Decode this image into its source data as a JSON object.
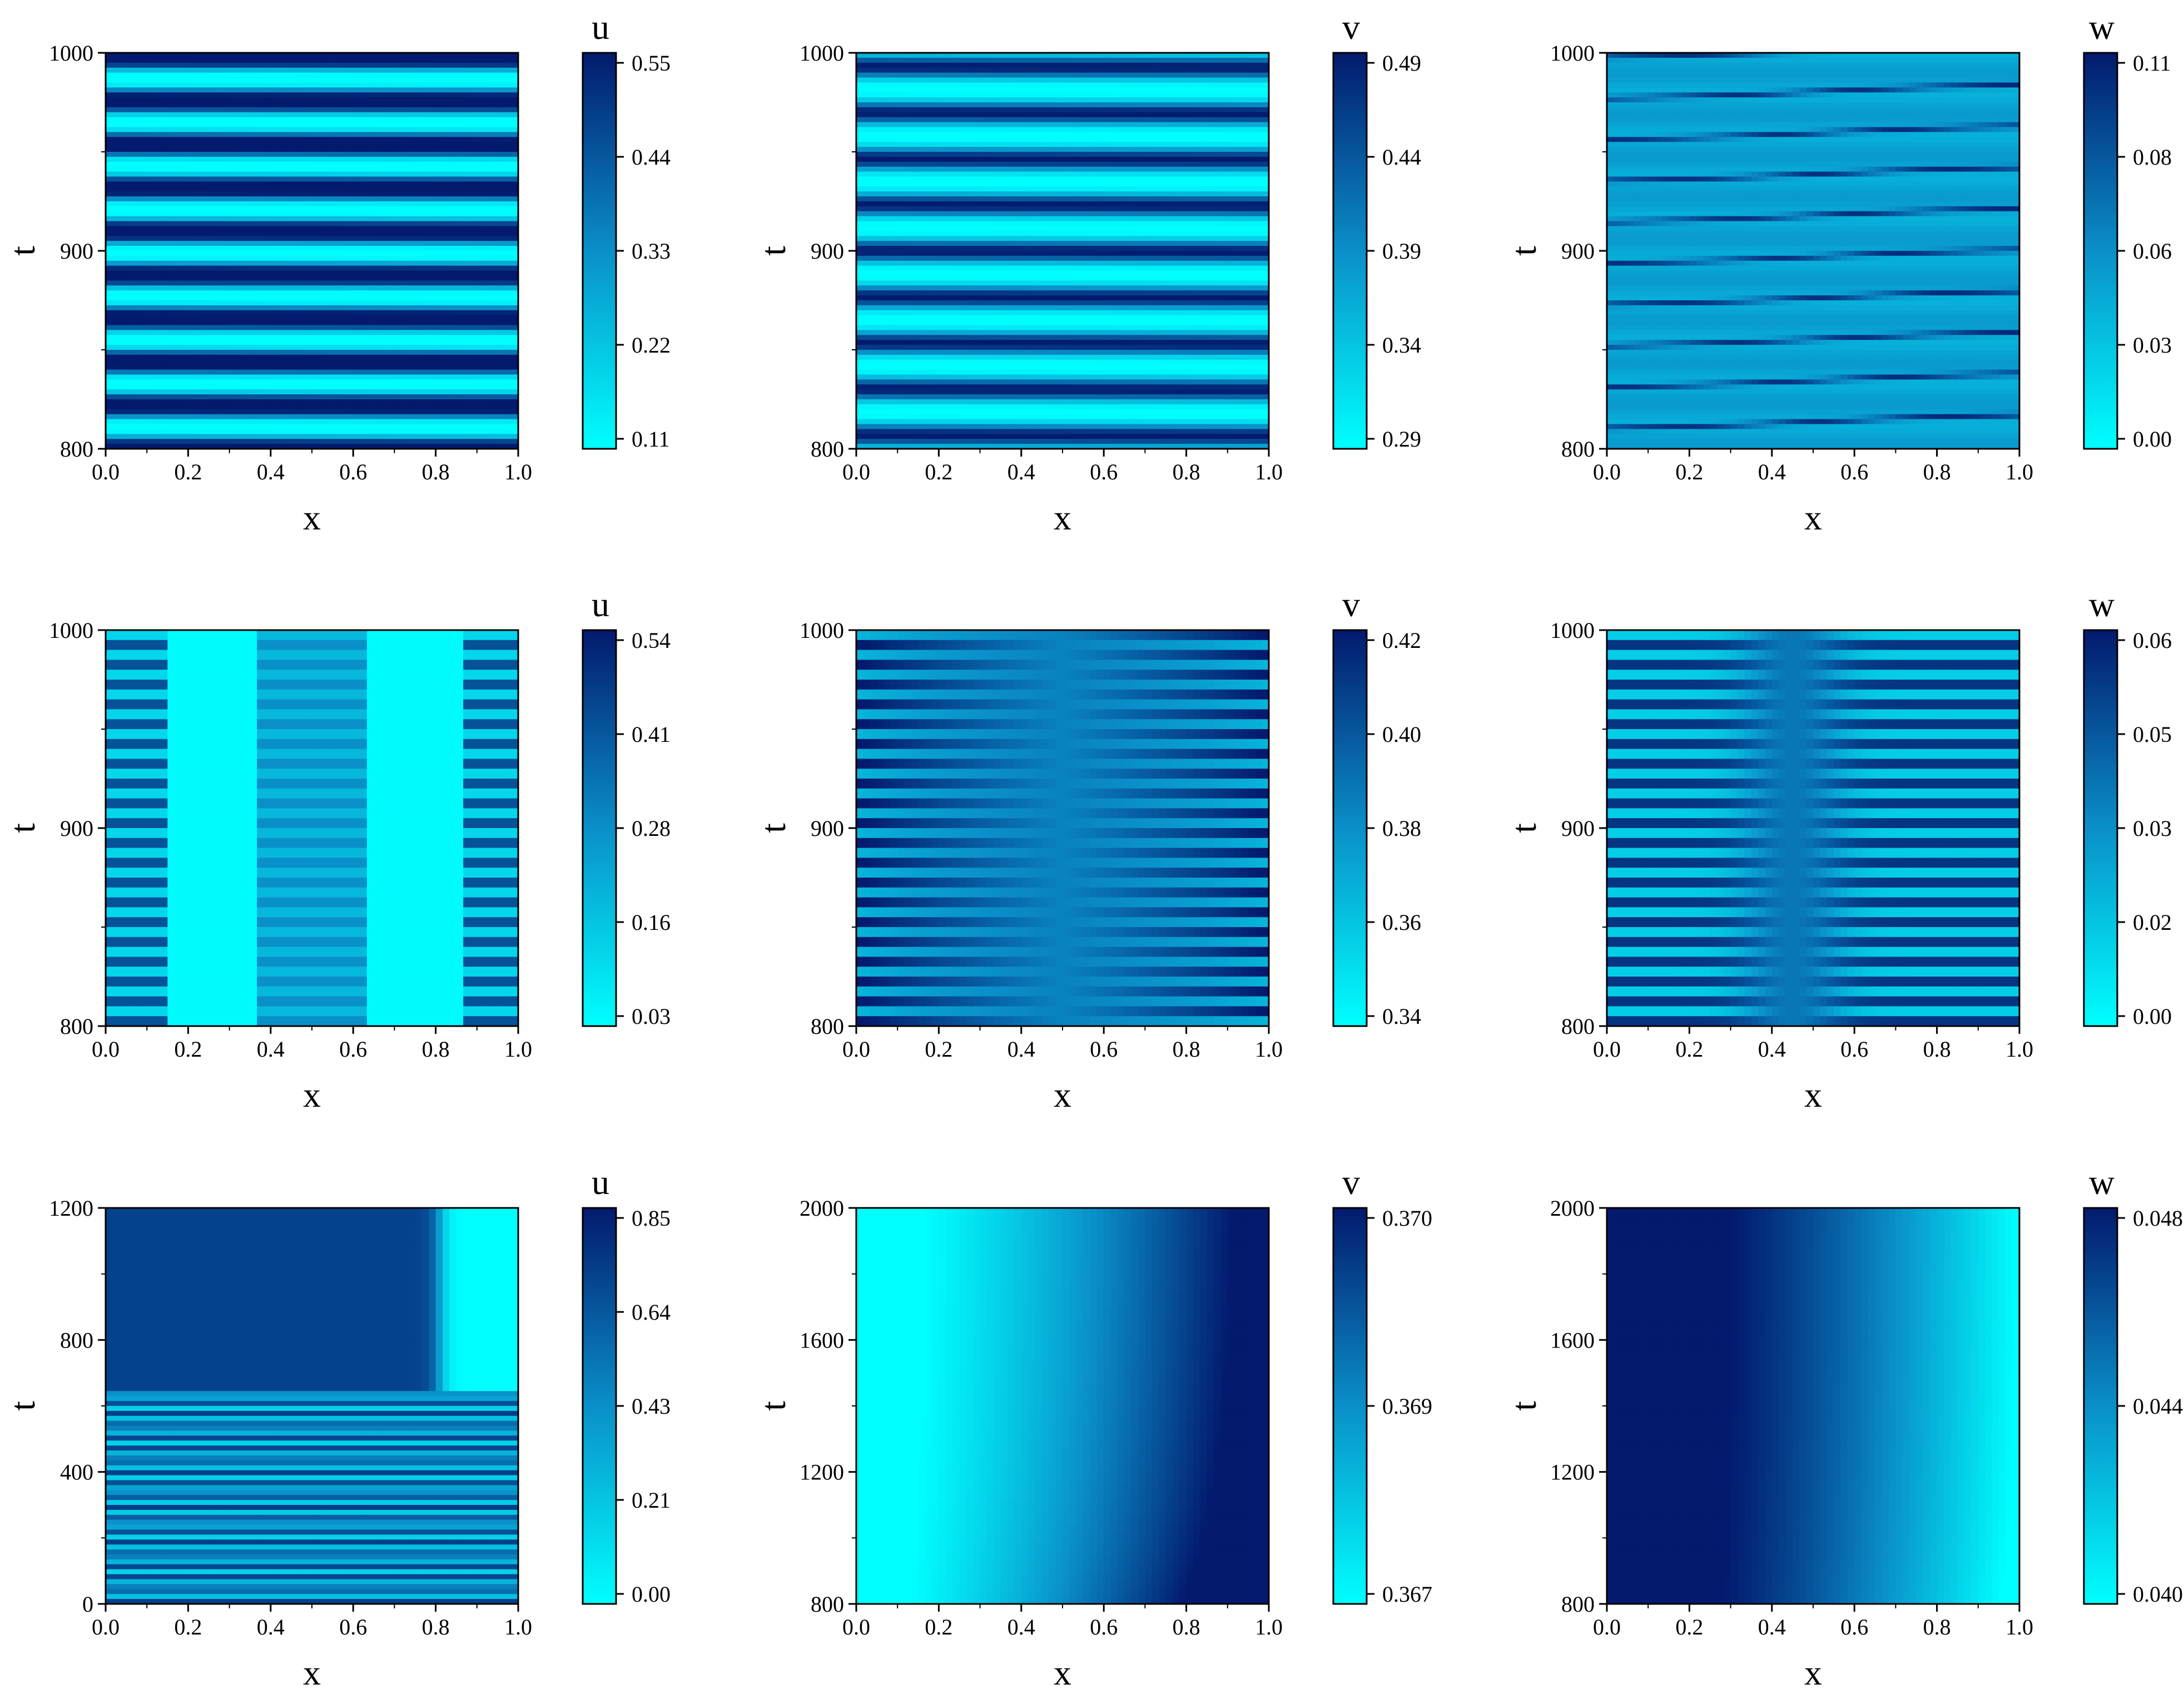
{
  "colors": {
    "low": "#00ffff",
    "mid": "#0a8fc8",
    "high": "#031a6e",
    "frame": "#000000"
  },
  "chart_data": [
    {
      "type": "heatmap",
      "title": "",
      "xlabel": "x",
      "ylabel": "t",
      "colorbar_label": "u",
      "xlim": [
        0.0,
        1.0
      ],
      "ylim": [
        800,
        1000
      ],
      "x_ticks": [
        "0.0",
        "0.2",
        "0.4",
        "0.6",
        "0.8",
        "1.0"
      ],
      "y_ticks": [
        "800",
        "900",
        "1000"
      ],
      "colorbar_ticks": [
        "0.55",
        "0.44",
        "0.33",
        "0.22",
        "0.11"
      ],
      "color_range": [
        0.11,
        0.55
      ],
      "pattern": "horizontal stripes, uniform in x, about 9 periods in t",
      "z_description": "u(x,t) periodic in time"
    },
    {
      "type": "heatmap",
      "title": "",
      "xlabel": "x",
      "ylabel": "t",
      "colorbar_label": "v",
      "xlim": [
        0.0,
        1.0
      ],
      "ylim": [
        800,
        1000
      ],
      "x_ticks": [
        "0.0",
        "0.2",
        "0.4",
        "0.6",
        "0.8",
        "1.0"
      ],
      "y_ticks": [
        "800",
        "900",
        "1000"
      ],
      "colorbar_ticks": [
        "0.49",
        "0.44",
        "0.39",
        "0.34",
        "0.29"
      ],
      "color_range": [
        0.29,
        0.49
      ],
      "pattern": "horizontal stripes, uniform in x, about 9 periods in t",
      "z_description": "v(x,t) periodic in time"
    },
    {
      "type": "heatmap",
      "title": "",
      "xlabel": "x",
      "ylabel": "t",
      "colorbar_label": "w",
      "xlim": [
        0.0,
        1.0
      ],
      "ylim": [
        800,
        1000
      ],
      "x_ticks": [
        "0.0",
        "0.2",
        "0.4",
        "0.6",
        "0.8",
        "1.0"
      ],
      "y_ticks": [
        "800",
        "900",
        "1000"
      ],
      "colorbar_ticks": [
        "0.11",
        "0.08",
        "0.06",
        "0.03",
        "0.00"
      ],
      "color_range": [
        0.0,
        0.11
      ],
      "pattern": "slanted thin dark bands on light background",
      "z_description": "w(x,t) spikes travelling in x"
    },
    {
      "type": "heatmap",
      "title": "",
      "xlabel": "x",
      "ylabel": "t",
      "colorbar_label": "u",
      "xlim": [
        0.0,
        1.0
      ],
      "ylim": [
        800,
        1000
      ],
      "x_ticks": [
        "0.0",
        "0.2",
        "0.4",
        "0.6",
        "0.8",
        "1.0"
      ],
      "y_ticks": [
        "800",
        "900",
        "1000"
      ],
      "colorbar_ticks": [
        "0.54",
        "0.41",
        "0.28",
        "0.16",
        "0.03"
      ],
      "color_range": [
        0.03,
        0.54
      ],
      "pattern": "oscillating columns near x=0, x=0.5, x=1; light elsewhere",
      "z_description": "u(x,t) spatially localized oscillations"
    },
    {
      "type": "heatmap",
      "title": "",
      "xlabel": "x",
      "ylabel": "t",
      "colorbar_label": "v",
      "xlim": [
        0.0,
        1.0
      ],
      "ylim": [
        800,
        1000
      ],
      "x_ticks": [
        "0.0",
        "0.2",
        "0.4",
        "0.6",
        "0.8",
        "1.0"
      ],
      "y_ticks": [
        "800",
        "900",
        "1000"
      ],
      "colorbar_ticks": [
        "0.42",
        "0.40",
        "0.38",
        "0.36",
        "0.34"
      ],
      "color_range": [
        0.34,
        0.42
      ],
      "pattern": "dense horizontal stripes, about 20 periods in t, anti-phase at x=0 and x=1",
      "z_description": "v(x,t) fast oscillation"
    },
    {
      "type": "heatmap",
      "title": "",
      "xlabel": "x",
      "ylabel": "t",
      "colorbar_label": "w",
      "xlim": [
        0.0,
        1.0
      ],
      "ylim": [
        800,
        1000
      ],
      "x_ticks": [
        "0.0",
        "0.2",
        "0.4",
        "0.6",
        "0.8",
        "1.0"
      ],
      "y_ticks": [
        "800",
        "900",
        "1000"
      ],
      "colorbar_ticks": [
        "0.06",
        "0.05",
        "0.03",
        "0.02",
        "0.00"
      ],
      "color_range": [
        0.0,
        0.06
      ],
      "pattern": "dense horizontal stripes, about 20 periods in t, blended near x=0.45",
      "z_description": "w(x,t) fast oscillation"
    },
    {
      "type": "heatmap",
      "title": "",
      "xlabel": "x",
      "ylabel": "t",
      "colorbar_label": "u",
      "xlim": [
        0.0,
        1.0
      ],
      "ylim": [
        0,
        1200
      ],
      "x_ticks": [
        "0.0",
        "0.2",
        "0.4",
        "0.6",
        "0.8",
        "1.0"
      ],
      "y_ticks": [
        "0",
        "400",
        "800",
        "1200"
      ],
      "colorbar_ticks": [
        "0.85",
        "0.64",
        "0.43",
        "0.21",
        "0.00"
      ],
      "color_range": [
        0.0,
        0.85
      ],
      "pattern": "fine stripes for t < 640; steady state above with dark region x < 0.8 and light region x > 0.83",
      "z_description": "u(x,t) transient oscillation then stationary pattern"
    },
    {
      "type": "heatmap",
      "title": "",
      "xlabel": "x",
      "ylabel": "t",
      "colorbar_label": "v",
      "xlim": [
        0.0,
        1.0
      ],
      "ylim": [
        800,
        2000
      ],
      "x_ticks": [
        "0.0",
        "0.2",
        "0.4",
        "0.6",
        "0.8",
        "1.0"
      ],
      "y_ticks": [
        "800",
        "1200",
        "1600",
        "2000"
      ],
      "colorbar_ticks": [
        "0.370",
        "0.369",
        "0.367"
      ],
      "color_range": [
        0.367,
        0.37
      ],
      "pattern": "smooth gradient, light at left, dark at right",
      "z_description": "v(x,t) stationary"
    },
    {
      "type": "heatmap",
      "title": "",
      "xlabel": "x",
      "ylabel": "t",
      "colorbar_label": "w",
      "xlim": [
        0.0,
        1.0
      ],
      "ylim": [
        800,
        2000
      ],
      "x_ticks": [
        "0.0",
        "0.2",
        "0.4",
        "0.6",
        "0.8",
        "1.0"
      ],
      "y_ticks": [
        "800",
        "1200",
        "1600",
        "2000"
      ],
      "colorbar_ticks": [
        "0.048",
        "0.044",
        "0.040"
      ],
      "color_range": [
        0.04,
        0.048
      ],
      "pattern": "smooth gradient, dark at left, light at right",
      "z_description": "w(x,t) stationary"
    }
  ]
}
